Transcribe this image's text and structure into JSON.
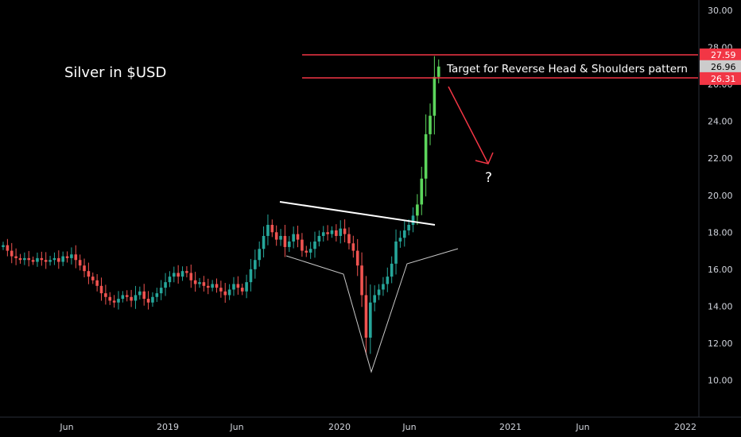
{
  "chart_data": {
    "type": "candlestick",
    "title": "Silver in $USD",
    "ylim": [
      9,
      31
    ],
    "y_ticks": [
      "30.00",
      "28.00",
      "26.00",
      "24.00",
      "22.00",
      "20.00",
      "18.00",
      "16.00",
      "14.00",
      "12.00",
      "10.00"
    ],
    "x_ticks": [
      "Jun",
      "2019",
      "Jun",
      "2020",
      "Jun",
      "2021",
      "Jun",
      "2022"
    ],
    "price_labels": [
      {
        "text": "27.59",
        "value": 27.59,
        "color": "#f23645"
      },
      {
        "text": "26.96",
        "value": 26.96,
        "color": "#cccccc"
      },
      {
        "text": "26.31",
        "value": 26.31,
        "color": "#f23645"
      }
    ],
    "annotations": {
      "target_text": "Target for Reverse Head & Shoulders pattern",
      "question": "?"
    },
    "colors": {
      "up": "#26a69a",
      "up_bright": "#5cd65c",
      "down": "#ef5350",
      "line": "#f23645"
    },
    "weekly_closes_start": 17.2,
    "series": [
      17.3,
      17.0,
      16.7,
      16.6,
      16.5,
      16.6,
      16.5,
      16.4,
      16.6,
      16.5,
      16.4,
      16.5,
      16.6,
      16.4,
      16.7,
      16.6,
      16.8,
      16.5,
      16.2,
      15.9,
      15.6,
      15.4,
      15.1,
      14.7,
      14.5,
      14.3,
      14.2,
      14.4,
      14.6,
      14.5,
      14.3,
      14.6,
      14.8,
      14.4,
      14.2,
      14.5,
      14.7,
      15.0,
      15.3,
      15.6,
      15.8,
      15.6,
      15.9,
      15.8,
      15.4,
      15.2,
      15.3,
      15.1,
      15.0,
      15.2,
      15.0,
      14.8,
      14.6,
      14.9,
      15.2,
      15.0,
      14.8,
      15.3,
      16.0,
      16.5,
      17.1,
      17.8,
      18.4,
      18.0,
      17.6,
      17.8,
      17.2,
      17.5,
      17.9,
      17.6,
      17.0,
      16.9,
      17.1,
      17.5,
      17.8,
      18.0,
      17.9,
      18.1,
      17.8,
      18.2,
      17.9,
      17.4,
      17.0,
      16.2,
      14.6,
      12.3,
      14.2,
      14.6,
      14.9,
      15.2,
      15.6,
      16.3,
      17.5,
      17.7,
      18.1,
      18.4,
      18.9,
      19.5,
      20.9,
      23.3,
      24.3,
      26.4,
      26.96
    ]
  }
}
